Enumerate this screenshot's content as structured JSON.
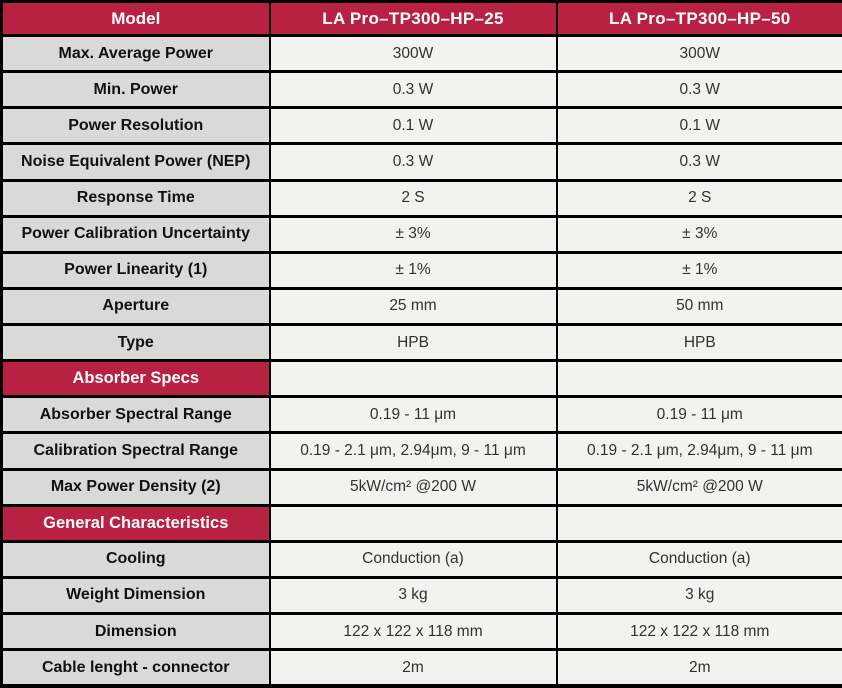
{
  "table": {
    "title": "Laser power meter specification table",
    "colors": {
      "header_red": "#b92143",
      "label_column_bg": "#d9d9d9",
      "value_cell_bg": "#f2f2f0",
      "border": "#000000",
      "header_text": "#ffffff"
    },
    "header": {
      "label": "Model",
      "model1": "LA Pro–TP300–HP–25",
      "model2": "LA Pro–TP300–HP–50"
    },
    "rows": [
      {
        "type": "data",
        "label": "Max. Average Power",
        "v1": "300W",
        "v2": "300W"
      },
      {
        "type": "data",
        "label": "Min. Power",
        "v1": "0.3 W",
        "v2": "0.3 W"
      },
      {
        "type": "data",
        "label": "Power Resolution",
        "v1": "0.1 W",
        "v2": "0.1 W"
      },
      {
        "type": "data",
        "label": "Noise Equivalent Power (NEP)",
        "v1": "0.3 W",
        "v2": "0.3 W"
      },
      {
        "type": "data",
        "label": "Response Time",
        "v1": "2 S",
        "v2": "2 S"
      },
      {
        "type": "data",
        "label": "Power Calibration Uncertainty",
        "v1": "±  3%",
        "v2": "± 3%"
      },
      {
        "type": "data",
        "label": "Power Linearity (1)",
        "v1": "±  1%",
        "v2": "± 1%"
      },
      {
        "type": "data",
        "label": "Aperture",
        "v1": "25 mm",
        "v2": "50 mm"
      },
      {
        "type": "data",
        "label": "Type",
        "v1": "HPB",
        "v2": "HPB"
      },
      {
        "type": "section",
        "label": "Absorber Specs",
        "v1": "",
        "v2": ""
      },
      {
        "type": "data",
        "label": "Absorber Spectral Range",
        "v1": "0.19 - 11  μm",
        "v2": "0.19 - 11  μm"
      },
      {
        "type": "data",
        "label": "Calibration Spectral Range",
        "v1": "0.19 - 2.1  μm, 2.94μm, 9 - 11  μm",
        "v2": "0.19 - 2.1  μm, 2.94μm, 9 - 11  μm"
      },
      {
        "type": "data",
        "label": "Max Power Density (2)",
        "v1": "5kW/cm²  @200 W",
        "v2": "5kW/cm²  @200 W"
      },
      {
        "type": "section",
        "label": "General Characteristics",
        "v1": "",
        "v2": ""
      },
      {
        "type": "data",
        "label": "Cooling",
        "v1": "Conduction (a)",
        "v2": "Conduction (a)"
      },
      {
        "type": "data",
        "label": "Weight Dimension",
        "v1": "3 kg",
        "v2": "3 kg"
      },
      {
        "type": "data",
        "label": "Dimension",
        "v1": "122 x 122 x 118 mm",
        "v2": "122 x 122 x 118 mm"
      },
      {
        "type": "data",
        "label": "Cable lenght - connector",
        "v1": "2m",
        "v2": "2m"
      }
    ]
  }
}
